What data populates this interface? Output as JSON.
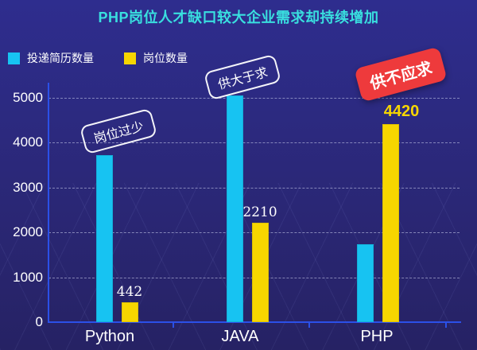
{
  "title": {
    "text": "PHP岗位人才缺口较大企业需求却持续增加",
    "color": "#39dfdf"
  },
  "legend": [
    {
      "label": "投递简历数量",
      "color": "#17c3f2"
    },
    {
      "label": "岗位数量",
      "color": "#f7d600"
    }
  ],
  "chart_data": {
    "type": "bar",
    "categories": [
      "Python",
      "JAVA",
      "PHP"
    ],
    "series": [
      {
        "name": "投递简历数量",
        "color": "#17c3f2",
        "values": [
          3730,
          5060,
          1730
        ]
      },
      {
        "name": "岗位数量",
        "color": "#f7d600",
        "values": [
          442,
          2210,
          4420
        ]
      }
    ],
    "value_labels": [
      {
        "text": "442",
        "series": "岗位数量",
        "category": "Python",
        "color": "#ffffff",
        "emphasis": false
      },
      {
        "text": "2210",
        "series": "岗位数量",
        "category": "JAVA",
        "color": "#ffffff",
        "emphasis": false
      },
      {
        "text": "4420",
        "series": "岗位数量",
        "category": "PHP",
        "color": "#f7d600",
        "emphasis": true
      }
    ],
    "ylim": [
      0,
      5000
    ],
    "y_ticks": [
      0,
      1000,
      2000,
      3000,
      4000,
      5000
    ],
    "grid": "dashed-horizontal",
    "legend_position": "top-left"
  },
  "annotations": [
    {
      "text": "岗位过少",
      "style": "outline-pill",
      "target": "Python"
    },
    {
      "text": "供大于求",
      "style": "outline-pill",
      "target": "JAVA"
    },
    {
      "text": "供不应求",
      "style": "red-badge",
      "target": "PHP",
      "bg": "#ee3a3c"
    }
  ],
  "colors": {
    "background": "#2b2879",
    "axis": "#2b50e8",
    "gridline": "rgba(208,212,240,0.55)",
    "text": "#ffffff"
  }
}
